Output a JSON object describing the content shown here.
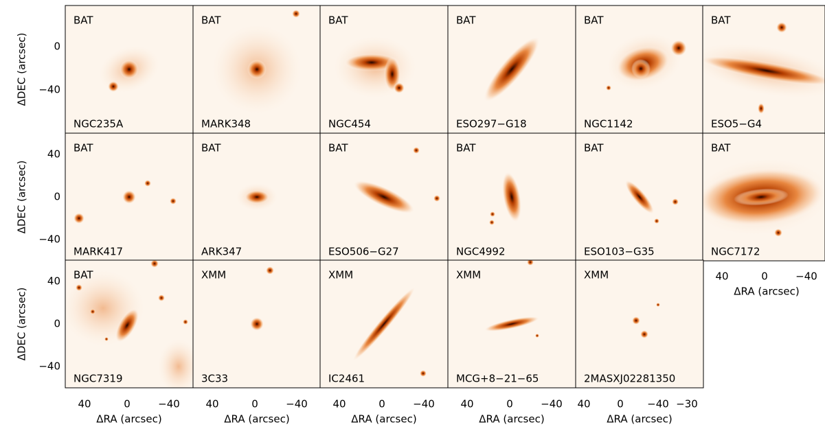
{
  "figure": {
    "y_label": "ΔDEC (arcsec)",
    "x_label": "ΔRA (arcsec)",
    "row_y_tick_labels": [
      [
        "0",
        "−40"
      ],
      [
        "40",
        "0",
        "−40"
      ],
      [
        "40",
        "0",
        "−40"
      ]
    ],
    "bottom_x_tick_labels": [
      [
        "40",
        "0",
        "−40"
      ],
      [
        "40",
        "0",
        "−40"
      ],
      [
        "40",
        "0",
        "−40"
      ],
      [
        "40",
        "0",
        "−40"
      ],
      [
        "40",
        "0",
        "−40",
        "−30"
      ],
      [
        "40",
        "0",
        "−40"
      ]
    ],
    "panels": [
      {
        "survey": "BAT",
        "name": "NGC235A"
      },
      {
        "survey": "BAT",
        "name": "MARK348"
      },
      {
        "survey": "BAT",
        "name": "NGC454"
      },
      {
        "survey": "BAT",
        "name": "ESO297−G18"
      },
      {
        "survey": "BAT",
        "name": "NGC1142"
      },
      {
        "survey": "BAT",
        "name": "ESO5−G4"
      },
      {
        "survey": "BAT",
        "name": "MARK417"
      },
      {
        "survey": "BAT",
        "name": "ARK347"
      },
      {
        "survey": "BAT",
        "name": "ESO506−G27"
      },
      {
        "survey": "BAT",
        "name": "NGC4992"
      },
      {
        "survey": "BAT",
        "name": "ESO103−G35"
      },
      {
        "survey": "BAT",
        "name": "NGC7172"
      },
      {
        "survey": "BAT",
        "name": "NGC7319"
      },
      {
        "survey": "XMM",
        "name": "3C33"
      },
      {
        "survey": "XMM",
        "name": "IC2461"
      },
      {
        "survey": "XMM",
        "name": "MCG+8−21−65"
      },
      {
        "survey": "XMM",
        "name": "2MASXJ02281350"
      }
    ]
  }
}
